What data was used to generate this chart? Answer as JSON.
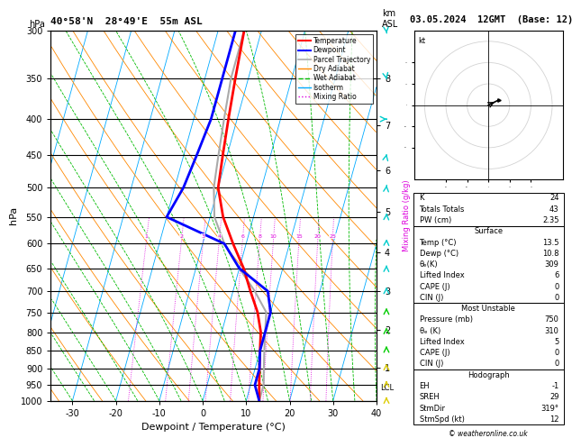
{
  "title_left": "40°58'N  28°49'E  55m ASL",
  "title_right": "03.05.2024  12GMT  (Base: 12)",
  "xlabel": "Dewpoint / Temperature (°C)",
  "pmin": 300,
  "pmax": 1000,
  "xmin": -35,
  "xmax": 40,
  "skew": 45,
  "pressure_ticks": [
    300,
    350,
    400,
    450,
    500,
    550,
    600,
    650,
    700,
    750,
    800,
    850,
    900,
    950,
    1000
  ],
  "km_levels": [
    1,
    2,
    3,
    4,
    5,
    6,
    7,
    8
  ],
  "km_pressures": [
    898,
    795,
    700,
    617,
    541,
    472,
    408,
    350
  ],
  "temp_pressures": [
    300,
    350,
    400,
    450,
    500,
    550,
    600,
    650,
    700,
    750,
    800,
    850,
    900,
    950,
    1000
  ],
  "temp_vals": [
    -14,
    -13,
    -12,
    -11,
    -10,
    -7,
    -3,
    1,
    4,
    7,
    9,
    10,
    11,
    12,
    13
  ],
  "dewp_vals": [
    -16,
    -16,
    -16,
    -17,
    -18,
    -20,
    -5,
    0,
    8,
    10,
    10,
    10,
    11,
    11,
    13
  ],
  "parcel_vals": [
    -14,
    -14,
    -13,
    -12,
    -11,
    -9,
    -5,
    0,
    5,
    9,
    10,
    11,
    12,
    13,
    13
  ],
  "temp_color": "#ff0000",
  "dewp_color": "#0000ff",
  "parcel_color": "#aaaaaa",
  "dry_color": "#ff8800",
  "wet_color": "#00bb00",
  "iso_color": "#00aaff",
  "mr_color": "#dd00dd",
  "mixing_ratios": [
    1,
    2,
    3,
    4,
    6,
    8,
    10,
    15,
    20,
    25
  ],
  "lcl_p": 960,
  "K": "24",
  "TT": "43",
  "PW": "2.35",
  "sfc_temp": "13.5",
  "sfc_dewp": "10.8",
  "sfc_the": "309",
  "sfc_li": "6",
  "sfc_cape": "0",
  "sfc_cin": "0",
  "mu_p": "750",
  "mu_the": "310",
  "mu_li": "5",
  "mu_cape": "0",
  "mu_cin": "0",
  "EH": "-1",
  "SREH": "29",
  "StmDir": "319°",
  "StmSpd": "12",
  "copyright": "© weatheronline.co.uk"
}
